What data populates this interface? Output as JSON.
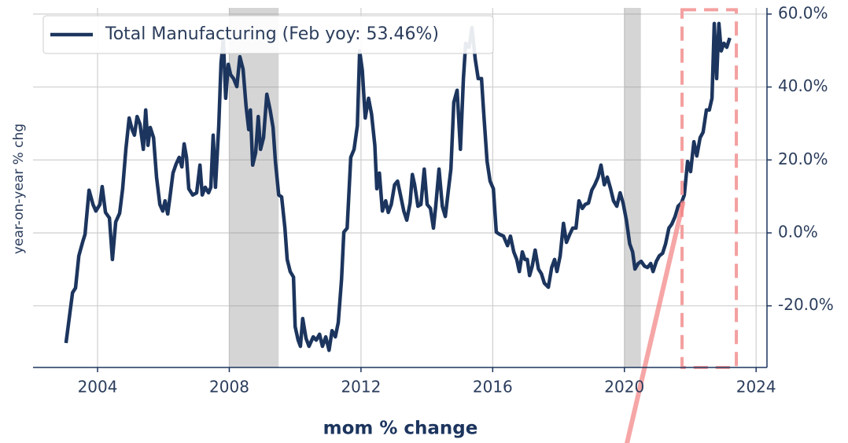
{
  "chart_data": {
    "type": "line",
    "xlabel": "mom % change",
    "ylabel": "year-on-year % chg",
    "x": [
      2003.04,
      2003.24,
      2003.33,
      2003.43,
      2003.55,
      2003.62,
      2003.74,
      2003.86,
      2003.95,
      2004.07,
      2004.14,
      2004.24,
      2004.36,
      2004.45,
      2004.55,
      2004.67,
      2004.76,
      2004.86,
      2004.96,
      2005.05,
      2005.12,
      2005.2,
      2005.29,
      2005.39,
      2005.46,
      2005.53,
      2005.6,
      2005.7,
      2005.79,
      2005.89,
      2005.98,
      2006.05,
      2006.13,
      2006.2,
      2006.29,
      2006.39,
      2006.48,
      2006.56,
      2006.63,
      2006.7,
      2006.77,
      2006.89,
      2007.01,
      2007.11,
      2007.18,
      2007.27,
      2007.37,
      2007.44,
      2007.51,
      2007.58,
      2007.68,
      2007.75,
      2007.82,
      2007.89,
      2007.97,
      2008.04,
      2008.13,
      2008.23,
      2008.32,
      2008.42,
      2008.51,
      2008.59,
      2008.64,
      2008.71,
      2008.8,
      2008.88,
      2008.95,
      2009.04,
      2009.14,
      2009.24,
      2009.33,
      2009.4,
      2009.5,
      2009.59,
      2009.69,
      2009.76,
      2009.85,
      2009.95,
      2010.0,
      2010.09,
      2010.16,
      2010.23,
      2010.33,
      2010.42,
      2010.55,
      2010.64,
      2010.74,
      2010.83,
      2010.93,
      2011.03,
      2011.12,
      2011.22,
      2011.31,
      2011.41,
      2011.48,
      2011.58,
      2011.69,
      2011.79,
      2011.89,
      2011.96,
      2012.04,
      2012.13,
      2012.23,
      2012.32,
      2012.42,
      2012.48,
      2012.56,
      2012.65,
      2012.75,
      2012.83,
      2012.92,
      2013.02,
      2013.11,
      2013.2,
      2013.3,
      2013.39,
      2013.49,
      2013.56,
      2013.63,
      2013.73,
      2013.82,
      2013.92,
      2014.01,
      2014.11,
      2014.2,
      2014.27,
      2014.37,
      2014.47,
      2014.56,
      2014.66,
      2014.73,
      2014.82,
      2014.92,
      2015.02,
      2015.11,
      2015.18,
      2015.28,
      2015.37,
      2015.47,
      2015.56,
      2015.66,
      2015.73,
      2015.83,
      2015.92,
      2016.02,
      2016.11,
      2016.21,
      2016.33,
      2016.45,
      2016.54,
      2016.64,
      2016.73,
      2016.81,
      2016.9,
      2016.98,
      2017.05,
      2017.12,
      2017.2,
      2017.29,
      2017.39,
      2017.48,
      2017.57,
      2017.69,
      2017.79,
      2017.88,
      2017.95,
      2018.05,
      2018.15,
      2018.24,
      2018.34,
      2018.43,
      2018.53,
      2018.62,
      2018.72,
      2018.81,
      2018.91,
      2019.01,
      2019.1,
      2019.2,
      2019.29,
      2019.39,
      2019.48,
      2019.58,
      2019.67,
      2019.77,
      2019.87,
      2019.96,
      2020.06,
      2020.16,
      2020.25,
      2020.32,
      2020.42,
      2020.51,
      2020.61,
      2020.7,
      2020.8,
      2020.87,
      2020.97,
      2021.06,
      2021.16,
      2021.25,
      2021.35,
      2021.44,
      2021.54,
      2021.63,
      2021.73,
      2021.82,
      2021.92,
      2022.01,
      2022.11,
      2022.2,
      2022.3,
      2022.39,
      2022.49,
      2022.58,
      2022.66,
      2022.73,
      2022.8,
      2022.87,
      2022.94,
      2023.02,
      2023.11,
      2023.2
    ],
    "series": [
      {
        "name": "Total Manufacturing (Feb yoy: 53.46%)",
        "color": "#1c355e",
        "values": [
          -30.2,
          -16.4,
          -15.1,
          -6.3,
          -2.4,
          -0.4,
          11.7,
          7.8,
          6.0,
          7.8,
          12.7,
          5.6,
          4.1,
          -7.3,
          3.0,
          5.4,
          12.1,
          22.9,
          31.5,
          28.3,
          26.8,
          31.9,
          29.8,
          22.9,
          33.7,
          24,
          28.9,
          26.1,
          15.3,
          7.8,
          6.0,
          8.8,
          5.2,
          9.9,
          16.4,
          19,
          20.7,
          18.1,
          24.4,
          20.7,
          12.1,
          10.4,
          11,
          18.6,
          10.4,
          12.5,
          11,
          12.5,
          26.8,
          12.5,
          29.4,
          46.6,
          53.1,
          36.9,
          46.2,
          43.4,
          42.3,
          40.1,
          48.3,
          44.9,
          34.8,
          28.3,
          33.7,
          18.6,
          22,
          31.9,
          22.9,
          26.1,
          38,
          33.7,
          28.9,
          19.6,
          10.4,
          9.9,
          1.3,
          -7.3,
          -10.6,
          -12.1,
          -25.7,
          -29.4,
          -31.1,
          -23.5,
          -28.9,
          -31.1,
          -28.5,
          -29.4,
          -27.8,
          -31.1,
          -28.5,
          -32.2,
          -26.8,
          -28.5,
          -24.6,
          -12.7,
          0.2,
          1.3,
          20.7,
          22.9,
          29.4,
          49.9,
          44.5,
          31.5,
          36.9,
          32.6,
          24,
          12.1,
          16.4,
          6,
          8.8,
          5.6,
          7.8,
          13.2,
          14.2,
          10.4,
          6,
          3.5,
          8.2,
          16,
          13.2,
          7.3,
          7.8,
          17.5,
          7.8,
          6.7,
          1.3,
          7.3,
          17.5,
          7.3,
          4.5,
          12.1,
          17.5,
          35.8,
          39.1,
          22.9,
          42.3,
          52,
          50.9,
          56.3,
          47.7,
          42.3,
          42.3,
          32.6,
          19.6,
          14.2,
          12.1,
          0.2,
          -0.4,
          -0.9,
          -3.5,
          -0.9,
          -5.2,
          -7.3,
          -10.6,
          -5.2,
          -7.3,
          -7.3,
          -11.7,
          -9.1,
          -4.7,
          -9.9,
          -11.2,
          -13.8,
          -14.9,
          -9.5,
          -7.3,
          -10.6,
          -6.3,
          2.6,
          -2.6,
          -0.4,
          1.3,
          1.3,
          8.8,
          6.7,
          7.8,
          8.2,
          11.7,
          13.2,
          15.3,
          18.6,
          13.2,
          15.3,
          12.1,
          8.8,
          7.3,
          11,
          8.2,
          3.5,
          -3,
          -5.2,
          -9.9,
          -8.4,
          -7.8,
          -9.1,
          -9.5,
          -8.4,
          -10.6,
          -7.8,
          -6.3,
          -5.6,
          -3,
          1.3,
          2.4,
          4.5,
          7.3,
          8.2,
          10.4,
          19.6,
          16.8,
          25,
          21.1,
          26.1,
          27.6,
          33.7,
          33.7,
          36.9,
          57.4,
          42.3,
          57.4,
          49.9,
          52,
          50.9,
          53.46
        ]
      }
    ],
    "xlim": [
      2002.04,
      2024.33
    ],
    "xticks": [
      2004,
      2008,
      2012,
      2016,
      2020,
      2024
    ],
    "ylim": [
      -36.9,
      61.7
    ],
    "yticks": [
      {
        "value": -20,
        "label": "-20.0%"
      },
      {
        "value": 0,
        "label": "0.0%"
      },
      {
        "value": 20,
        "label": "20.0%"
      },
      {
        "value": 40,
        "label": "40.0%"
      },
      {
        "value": 60,
        "label": "60.0%"
      }
    ],
    "grid": true,
    "legend": "upper left",
    "shaded_regions": [
      [
        2008.0,
        2009.5
      ],
      [
        2020.0,
        2020.5
      ]
    ],
    "highlight_box": {
      "x": [
        2021.75,
        2023.4
      ],
      "y": [
        -36.9,
        61.2
      ],
      "color": "#f4a0a0"
    },
    "trend_line": {
      "x": [
        2020.08,
        2021.78
      ],
      "y": [
        -57.6,
        8.2
      ],
      "color": "#f28080"
    }
  }
}
